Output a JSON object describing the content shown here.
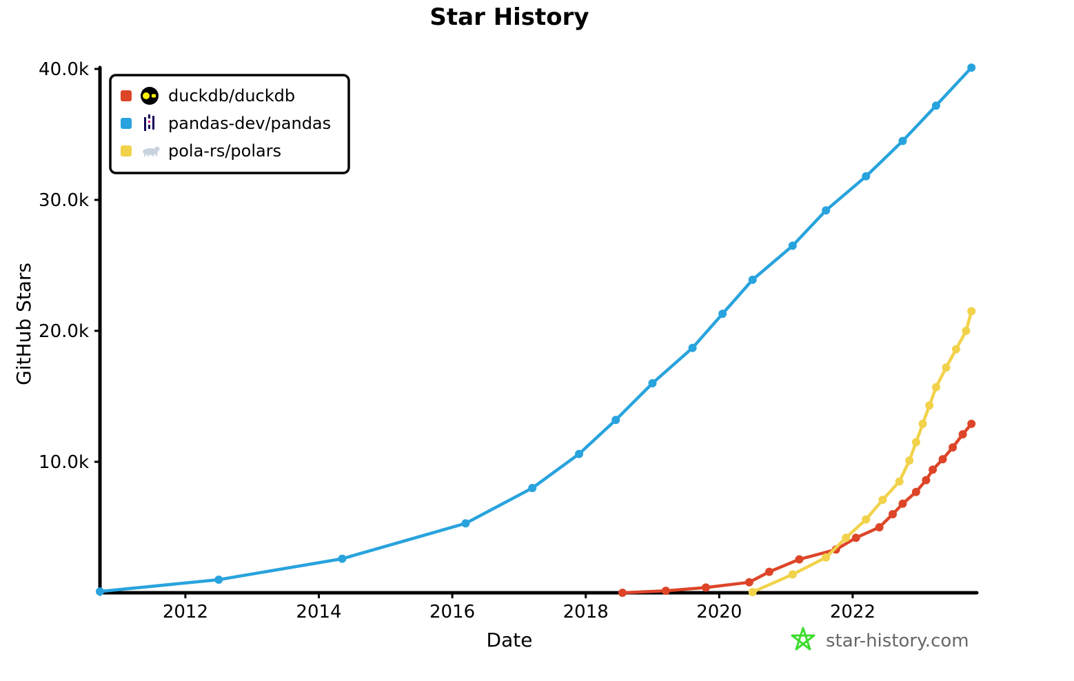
{
  "chart_data": {
    "type": "line",
    "title": "Star History",
    "xlabel": "Date",
    "ylabel": "GitHub Stars",
    "xlim": [
      2010.72,
      2023.85
    ],
    "ylim": [
      0,
      40000
    ],
    "x_ticks": [
      "2012",
      "2014",
      "2016",
      "2018",
      "2020",
      "2022"
    ],
    "y_ticks": [
      "10.0k",
      "20.0k",
      "30.0k",
      "40.0k"
    ],
    "grid": false,
    "legend_position": "top-left",
    "series": [
      {
        "name": "duckdb/duckdb",
        "color": "#dd4528",
        "icon": "duckdb-logo-icon",
        "points": [
          [
            2018.55,
            0
          ],
          [
            2019.2,
            150
          ],
          [
            2019.8,
            400
          ],
          [
            2020.45,
            800
          ],
          [
            2020.75,
            1600
          ],
          [
            2021.2,
            2550
          ],
          [
            2021.75,
            3300
          ],
          [
            2022.05,
            4200
          ],
          [
            2022.4,
            5000
          ],
          [
            2022.6,
            6000
          ],
          [
            2022.75,
            6800
          ],
          [
            2022.95,
            7700
          ],
          [
            2023.1,
            8600
          ],
          [
            2023.2,
            9400
          ],
          [
            2023.35,
            10200
          ],
          [
            2023.5,
            11100
          ],
          [
            2023.65,
            12100
          ],
          [
            2023.78,
            12900
          ]
        ]
      },
      {
        "name": "pandas-dev/pandas",
        "color": "#28a3dd",
        "icon": "pandas-logo-icon",
        "points": [
          [
            2010.72,
            100
          ],
          [
            2012.5,
            1000
          ],
          [
            2014.35,
            2600
          ],
          [
            2016.2,
            5300
          ],
          [
            2017.2,
            8000
          ],
          [
            2017.9,
            10600
          ],
          [
            2018.45,
            13200
          ],
          [
            2019.0,
            16000
          ],
          [
            2019.6,
            18700
          ],
          [
            2020.05,
            21300
          ],
          [
            2020.5,
            23900
          ],
          [
            2021.1,
            26500
          ],
          [
            2021.6,
            29200
          ],
          [
            2022.2,
            31800
          ],
          [
            2022.75,
            34500
          ],
          [
            2023.25,
            37200
          ],
          [
            2023.78,
            40100
          ]
        ]
      },
      {
        "name": "pola-rs/polars",
        "color": "#f1d24a",
        "icon": "polar-bear-icon",
        "points": [
          [
            2020.5,
            50
          ],
          [
            2021.1,
            1400
          ],
          [
            2021.6,
            2700
          ],
          [
            2021.9,
            4200
          ],
          [
            2022.2,
            5600
          ],
          [
            2022.45,
            7100
          ],
          [
            2022.7,
            8500
          ],
          [
            2022.85,
            10100
          ],
          [
            2022.95,
            11500
          ],
          [
            2023.05,
            12900
          ],
          [
            2023.15,
            14300
          ],
          [
            2023.25,
            15700
          ],
          [
            2023.4,
            17200
          ],
          [
            2023.55,
            18600
          ],
          [
            2023.7,
            20000
          ],
          [
            2023.78,
            21500
          ]
        ]
      }
    ]
  },
  "footer": {
    "brand_text": "star-history.com",
    "brand_icon": "star-logo-icon",
    "brand_color": "#3ddc2e"
  }
}
